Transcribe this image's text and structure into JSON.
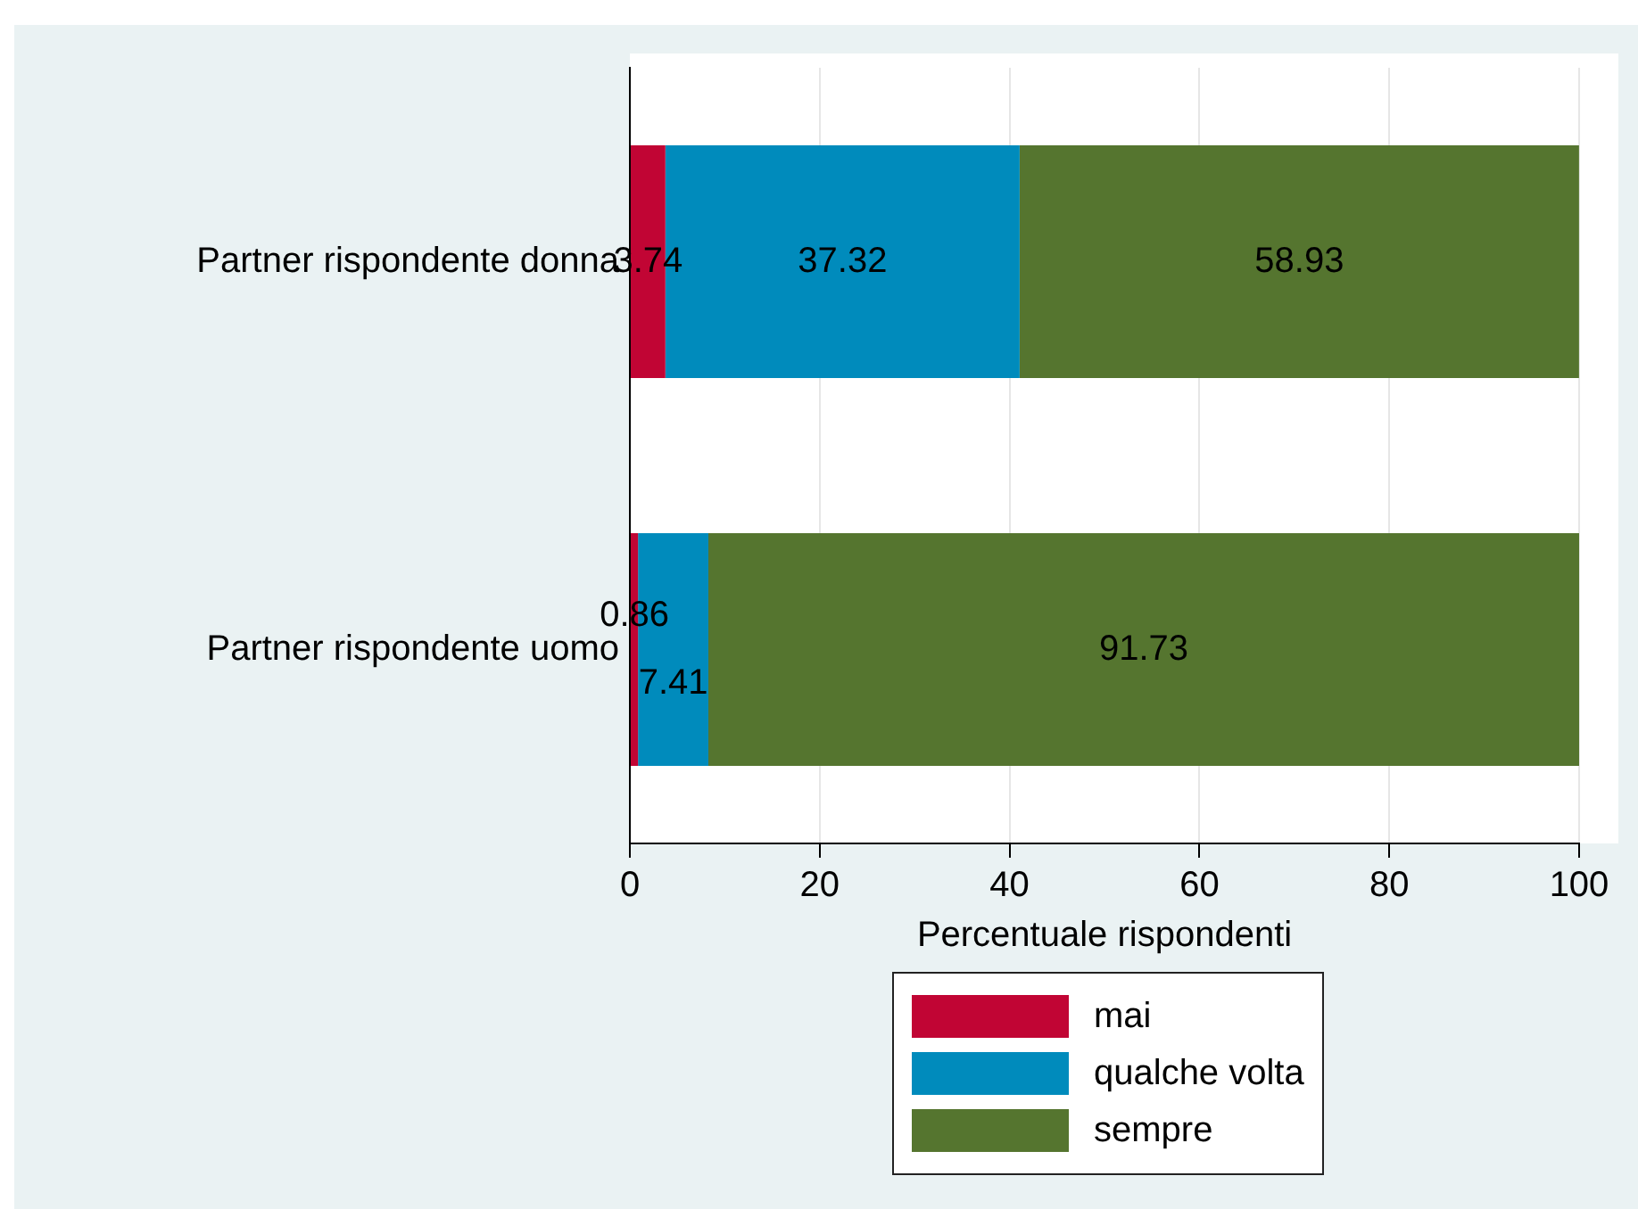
{
  "chart_data": {
    "type": "bar",
    "orientation": "horizontal",
    "stacked": true,
    "xlabel": "Percentuale rispondenti",
    "categories": [
      "Partner rispondente donna",
      "Partner rispondente uomo"
    ],
    "series": [
      {
        "name": "mai",
        "color": "#c10534",
        "values": [
          3.74,
          0.86
        ]
      },
      {
        "name": "qualche volta",
        "color": "#008bbc",
        "values": [
          37.32,
          7.41
        ]
      },
      {
        "name": "sempre",
        "color": "#55752f",
        "values": [
          58.93,
          91.73
        ]
      }
    ],
    "xlim": [
      0,
      100
    ],
    "xticks": [
      0,
      20,
      40,
      60,
      80,
      100
    ],
    "grid": "x",
    "legend": "bottom",
    "data_labels": true
  }
}
